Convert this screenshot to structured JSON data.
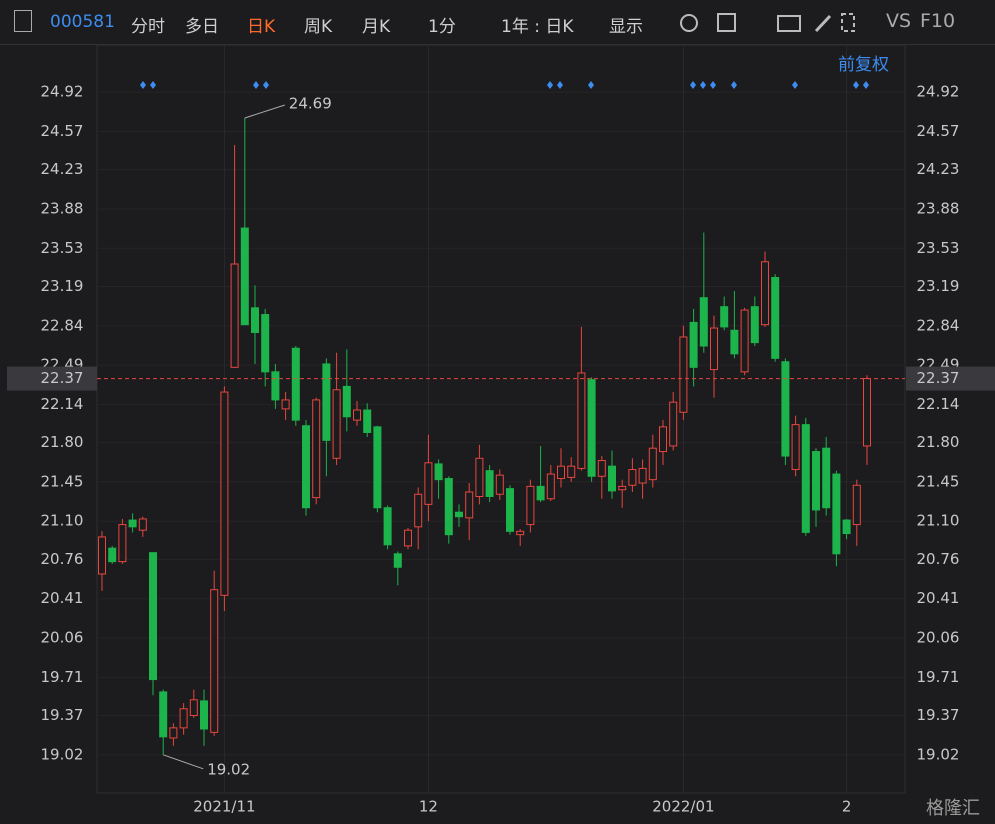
{
  "toolbar": {
    "code": "000581",
    "tabs": [
      "分时",
      "多日",
      "日K",
      "周K",
      "月K",
      "1分",
      "1年 : 日K",
      "显示"
    ],
    "right": [
      "VS",
      "F10"
    ],
    "adjust": "前复权"
  },
  "watermark": "格隆汇",
  "chart_data": {
    "type": "candlestick",
    "up_color": "#e8463e",
    "down_color": "#1db44c",
    "categories": [
      null,
      null,
      null,
      null,
      null,
      null,
      null,
      null,
      null,
      null,
      null,
      null,
      "2021/11",
      null,
      null,
      null,
      null,
      null,
      null,
      null,
      null,
      null,
      null,
      null,
      null,
      null,
      null,
      null,
      null,
      null,
      null,
      null,
      "12",
      null,
      null,
      null,
      null,
      null,
      null,
      null,
      null,
      null,
      null,
      null,
      null,
      null,
      null,
      null,
      null,
      null,
      null,
      null,
      null,
      null,
      null,
      null,
      null,
      "2022/01",
      null,
      null,
      null,
      null,
      null,
      null,
      null,
      null,
      null,
      null,
      null,
      null,
      null,
      null,
      null,
      "2",
      null,
      null
    ],
    "open": [
      20.63,
      20.86,
      20.74,
      21.11,
      21.02,
      20.82,
      19.58,
      19.17,
      19.26,
      19.37,
      19.5,
      19.22,
      20.44,
      22.47,
      23.71,
      23.0,
      22.94,
      22.43,
      22.1,
      22.64,
      21.95,
      21.31,
      22.5,
      21.66,
      22.3,
      22.0,
      22.09,
      21.94,
      21.22,
      20.81,
      20.88,
      21.05,
      21.25,
      21.61,
      21.48,
      21.18,
      21.13,
      21.32,
      21.55,
      21.34,
      21.39,
      20.98,
      21.07,
      21.41,
      21.3,
      21.48,
      21.49,
      21.57,
      22.36,
      21.5,
      21.59,
      21.38,
      21.42,
      21.44,
      21.47,
      21.72,
      21.77,
      22.07,
      22.87,
      23.09,
      22.45,
      23.01,
      22.8,
      22.43,
      23.01,
      22.85,
      23.27,
      22.52,
      21.56,
      21.96,
      21.72,
      21.75,
      21.52,
      21.11,
      21.07,
      21.77
    ],
    "high": [
      21.01,
      20.88,
      21.12,
      21.17,
      21.14,
      20.82,
      19.6,
      19.3,
      19.48,
      19.6,
      19.6,
      20.66,
      22.3,
      24.45,
      24.69,
      23.2,
      22.99,
      22.5,
      22.25,
      22.66,
      22.0,
      22.2,
      22.55,
      22.6,
      22.63,
      22.17,
      22.15,
      21.95,
      21.24,
      20.83,
      21.04,
      21.4,
      21.87,
      21.65,
      21.5,
      21.25,
      21.44,
      21.78,
      21.6,
      21.56,
      21.42,
      21.03,
      21.47,
      21.77,
      21.6,
      21.75,
      21.67,
      22.83,
      22.38,
      21.68,
      21.73,
      21.47,
      21.66,
      21.65,
      21.87,
      22.0,
      22.25,
      22.84,
      22.99,
      23.67,
      22.93,
      23.1,
      23.15,
      23.0,
      23.1,
      23.5,
      23.3,
      22.55,
      22.04,
      22.02,
      21.75,
      21.85,
      21.55,
      21.12,
      21.47,
      22.4
    ],
    "low": [
      20.48,
      20.72,
      20.72,
      21.0,
      20.96,
      19.55,
      19.02,
      19.1,
      19.2,
      19.35,
      19.1,
      19.19,
      20.3,
      22.47,
      22.85,
      22.5,
      22.3,
      22.1,
      22.0,
      21.95,
      21.15,
      21.25,
      21.5,
      21.6,
      21.9,
      21.95,
      21.85,
      21.18,
      20.85,
      20.53,
      20.85,
      20.85,
      21.1,
      21.3,
      20.9,
      21.05,
      20.93,
      21.25,
      21.27,
      21.29,
      20.98,
      20.88,
      21.0,
      21.27,
      21.28,
      21.4,
      21.45,
      21.55,
      21.45,
      21.3,
      21.3,
      21.22,
      21.36,
      21.3,
      21.4,
      21.6,
      21.73,
      22.0,
      22.3,
      22.6,
      22.2,
      22.8,
      22.55,
      22.4,
      22.66,
      22.83,
      22.52,
      21.6,
      21.5,
      20.97,
      21.05,
      21.15,
      20.7,
      20.94,
      20.88,
      21.6
    ],
    "close": [
      20.96,
      20.74,
      21.07,
      21.05,
      21.12,
      19.69,
      19.18,
      19.26,
      19.43,
      19.51,
      19.25,
      20.49,
      22.25,
      23.39,
      22.85,
      22.78,
      22.43,
      22.18,
      22.18,
      22.0,
      21.22,
      22.18,
      21.82,
      22.27,
      22.03,
      22.09,
      21.89,
      21.22,
      20.89,
      20.69,
      21.02,
      21.34,
      21.62,
      21.47,
      20.98,
      21.14,
      21.36,
      21.66,
      21.32,
      21.51,
      21.01,
      21.01,
      21.41,
      21.29,
      21.52,
      21.59,
      21.59,
      22.42,
      21.5,
      21.64,
      21.37,
      21.41,
      21.56,
      21.57,
      21.75,
      21.94,
      22.16,
      22.74,
      22.47,
      22.66,
      22.82,
      22.83,
      22.59,
      22.98,
      22.69,
      23.41,
      22.55,
      21.68,
      21.96,
      21.0,
      21.2,
      21.22,
      20.81,
      20.99,
      21.42,
      22.37
    ],
    "price_line": 22.37,
    "ylim": [
      18.68,
      25.34
    ],
    "yticks": [
      24.92,
      24.57,
      24.23,
      23.88,
      23.53,
      23.19,
      22.84,
      22.49,
      22.14,
      {
        "value": 21.8,
        "label": "21.80"
      },
      21.45,
      {
        "value": 21.1,
        "label": "21.10"
      },
      20.76,
      20.41,
      20.06,
      19.71,
      19.37,
      19.02
    ]
  }
}
